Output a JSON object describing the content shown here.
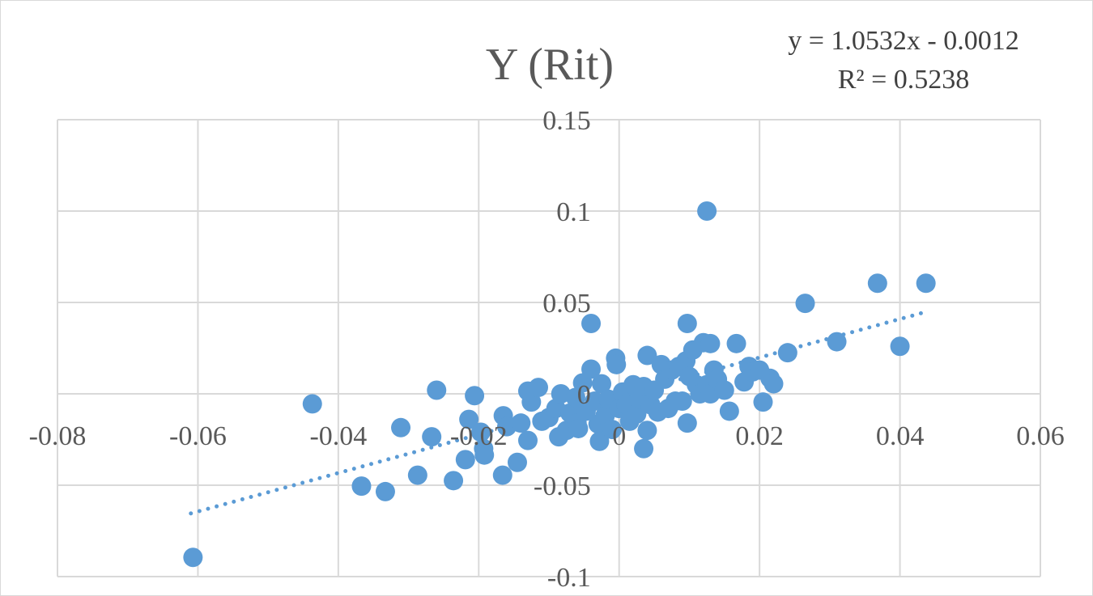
{
  "chart_data": {
    "type": "scatter",
    "title": "Y (Rit)",
    "xlabel": "",
    "ylabel": "",
    "xlim": [
      -0.08,
      0.06
    ],
    "ylim": [
      -0.1,
      0.15
    ],
    "x_ticks": [
      -0.08,
      -0.06,
      -0.04,
      -0.02,
      0,
      0.02,
      0.04,
      0.06
    ],
    "y_ticks": [
      -0.1,
      -0.05,
      0,
      0.05,
      0.1,
      0.15
    ],
    "x_tick_labels": [
      "-0.08",
      "-0.06",
      "-0.04",
      "-0.02",
      "0",
      "0.02",
      "0.04",
      "0.06"
    ],
    "y_tick_labels": [
      "-0.1",
      "-0.05",
      "0",
      "0.05",
      "0.1",
      "0.15"
    ],
    "grid": true,
    "color": "#5b9bd5",
    "trendline": {
      "type": "linear",
      "slope": 1.0532,
      "intercept": -0.0012,
      "x_range": [
        -0.061,
        0.0435
      ],
      "equation": "y = 1.0532x - 0.0012",
      "r_squared": "R² = 0.5238"
    },
    "points": [
      [
        -0.0607,
        -0.0895
      ],
      [
        -0.0437,
        -0.0055
      ],
      [
        -0.0367,
        -0.0505
      ],
      [
        -0.0333,
        -0.0535
      ],
      [
        -0.0311,
        -0.0185
      ],
      [
        -0.0287,
        -0.0445
      ],
      [
        -0.0267,
        -0.0235
      ],
      [
        -0.026,
        0.002
      ],
      [
        -0.0236,
        -0.0475
      ],
      [
        -0.0219,
        -0.036
      ],
      [
        -0.0214,
        -0.014
      ],
      [
        -0.0206,
        -0.001
      ],
      [
        -0.0197,
        -0.021
      ],
      [
        -0.0193,
        -0.03
      ],
      [
        -0.0192,
        -0.0335
      ],
      [
        -0.0166,
        -0.0445
      ],
      [
        -0.0165,
        -0.012
      ],
      [
        -0.016,
        -0.018
      ],
      [
        -0.0145,
        -0.0375
      ],
      [
        -0.014,
        -0.016
      ],
      [
        -0.013,
        -0.0255
      ],
      [
        -0.013,
        0.0015
      ],
      [
        -0.0125,
        -0.0045
      ],
      [
        -0.0115,
        0.0035
      ],
      [
        -0.011,
        -0.015
      ],
      [
        -0.01,
        -0.013
      ],
      [
        -0.009,
        -0.008
      ],
      [
        -0.0086,
        -0.0235
      ],
      [
        -0.0083,
        0.0
      ],
      [
        -0.0075,
        -0.02
      ],
      [
        -0.007,
        -0.0105
      ],
      [
        -0.006,
        -0.016
      ],
      [
        -0.0062,
        -0.002
      ],
      [
        -0.0058,
        -0.019
      ],
      [
        -0.0052,
        0.006
      ],
      [
        -0.0047,
        -0.0095
      ],
      [
        -0.004,
        0.0385
      ],
      [
        -0.004,
        0.0135
      ],
      [
        -0.0035,
        -0.004
      ],
      [
        -0.003,
        -0.0165
      ],
      [
        -0.0028,
        -0.026
      ],
      [
        -0.0025,
        0.0055
      ],
      [
        -0.002,
        -0.012
      ],
      [
        -0.0015,
        -0.003
      ],
      [
        -0.001,
        -0.0195
      ],
      [
        -0.0005,
        0.0195
      ],
      [
        -0.0004,
        0.016
      ],
      [
        0.0,
        -0.008
      ],
      [
        0.0005,
        0.001
      ],
      [
        0.001,
        -0.006
      ],
      [
        0.0015,
        -0.015
      ],
      [
        0.002,
        0.005
      ],
      [
        0.0025,
        -0.011
      ],
      [
        0.003,
        -0.003
      ],
      [
        0.0035,
        0.004
      ],
      [
        0.004,
        -0.02
      ],
      [
        0.0035,
        -0.03
      ],
      [
        0.004,
        0.021
      ],
      [
        0.0045,
        -0.006
      ],
      [
        0.005,
        0.002
      ],
      [
        0.0055,
        -0.01
      ],
      [
        0.006,
        0.016
      ],
      [
        0.0065,
        0.008
      ],
      [
        0.007,
        -0.008
      ],
      [
        0.0075,
        0.013
      ],
      [
        0.008,
        -0.004
      ],
      [
        0.0085,
        0.015
      ],
      [
        0.009,
        -0.004
      ],
      [
        0.0095,
        0.018
      ],
      [
        0.0097,
        0.0385
      ],
      [
        0.0097,
        -0.016
      ],
      [
        0.01,
        0.0095
      ],
      [
        0.0105,
        0.024
      ],
      [
        0.011,
        0.005
      ],
      [
        0.0115,
        0.0
      ],
      [
        0.012,
        0.028
      ],
      [
        0.0125,
        0.1
      ],
      [
        0.0125,
        0.005
      ],
      [
        0.013,
        0.0275
      ],
      [
        0.013,
        0.0
      ],
      [
        0.0135,
        0.013
      ],
      [
        0.014,
        0.008
      ],
      [
        0.015,
        0.002
      ],
      [
        0.0157,
        -0.0095
      ],
      [
        0.0167,
        0.0275
      ],
      [
        0.0178,
        0.0065
      ],
      [
        0.0185,
        0.015
      ],
      [
        0.019,
        0.012
      ],
      [
        0.02,
        0.013
      ],
      [
        0.0205,
        -0.0045
      ],
      [
        0.0215,
        0.0085
      ],
      [
        0.022,
        0.0055
      ],
      [
        0.024,
        0.0225
      ],
      [
        0.0265,
        0.0495
      ],
      [
        0.031,
        0.0285
      ],
      [
        0.0368,
        0.0605
      ],
      [
        0.04,
        0.026
      ],
      [
        0.0437,
        0.0605
      ]
    ]
  }
}
